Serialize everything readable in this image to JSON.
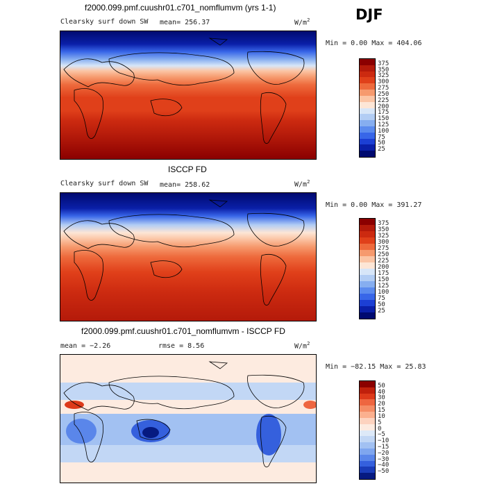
{
  "season": "DJF",
  "panels": [
    {
      "title": "f2000.099.pmf.cuushr01.c701_nomflumvm (yrs 1-1)",
      "variable": "Clearsky surf down SW",
      "mean_text": "mean= 256.37",
      "units_prefix": "W/m",
      "units_exp": "2",
      "minmax_text": "Min =    0.00 Max = 404.06",
      "levels": [
        "375",
        "350",
        "325",
        "300",
        "275",
        "250",
        "225",
        "200",
        "175",
        "150",
        "125",
        "100",
        "75",
        "50",
        "25"
      ]
    },
    {
      "title": "ISCCP FD",
      "variable": "Clearsky surf down SW",
      "mean_text": "mean= 258.62",
      "units_prefix": "W/m",
      "units_exp": "2",
      "minmax_text": "Min =    0.00 Max = 391.27",
      "levels": [
        "375",
        "350",
        "325",
        "300",
        "275",
        "250",
        "225",
        "200",
        "175",
        "150",
        "125",
        "100",
        "75",
        "50",
        "25"
      ]
    },
    {
      "title": "f2000.099.pmf.cuushr01.c701_nomflumvm - ISCCP FD",
      "mean_text": "mean =  −2.26",
      "rmse_text": "rmse =   8.56",
      "units_prefix": "W/m",
      "units_exp": "2",
      "minmax_text": "Min = −82.15 Max =  25.83",
      "levels": [
        "50",
        "40",
        "30",
        "20",
        "15",
        "10",
        "5",
        "0",
        "−5",
        "−10",
        "−15",
        "−20",
        "−30",
        "−40",
        "−50"
      ]
    }
  ],
  "colors": {
    "abs_scale": [
      "#8b0000",
      "#b41a0a",
      "#cc2a10",
      "#e0401a",
      "#ee6a3c",
      "#f69a6e",
      "#fbc5a5",
      "#fde6d6",
      "#d7e6f8",
      "#b2cdf4",
      "#86aef0",
      "#5b8bee",
      "#3866e8",
      "#1c3fd4",
      "#0a1fa8",
      "#000a70"
    ],
    "diff_scale": [
      "#8b0000",
      "#c0200c",
      "#dd3a1a",
      "#ee6640",
      "#f58d66",
      "#fbb08f",
      "#fdd3bf",
      "#fdebe0",
      "#dde9f8",
      "#c2d7f5",
      "#a2c1f2",
      "#7fa6ef",
      "#5a86ea",
      "#3560dd",
      "#1a3cb8",
      "#061a80"
    ]
  },
  "chart_data": [
    {
      "type": "heatmap",
      "title": "f2000.099.pmf.cuushr01.c701_nomflumvm (yrs 1-1)",
      "subtitle": "Clearsky surf down SW",
      "units": "W/m2",
      "mean": 256.37,
      "min": 0.0,
      "max": 404.06,
      "contour_levels": [
        25,
        50,
        75,
        100,
        125,
        150,
        175,
        200,
        225,
        250,
        275,
        300,
        325,
        350,
        375
      ],
      "zonal_profile": {
        "lat": [
          90,
          80,
          70,
          60,
          50,
          40,
          30,
          20,
          10,
          0,
          -10,
          -20,
          -30,
          -40,
          -50,
          -60,
          -70,
          -80,
          -90
        ],
        "value": [
          0,
          0,
          30,
          85,
          150,
          200,
          245,
          280,
          305,
          320,
          335,
          345,
          350,
          355,
          360,
          370,
          385,
          395,
          400
        ]
      }
    },
    {
      "type": "heatmap",
      "title": "ISCCP FD",
      "subtitle": "Clearsky surf down SW",
      "units": "W/m2",
      "mean": 258.62,
      "min": 0.0,
      "max": 391.27,
      "contour_levels": [
        25,
        50,
        75,
        100,
        125,
        150,
        175,
        200,
        225,
        250,
        275,
        300,
        325,
        350,
        375
      ],
      "zonal_profile": {
        "lat": [
          90,
          80,
          70,
          60,
          50,
          40,
          30,
          20,
          10,
          0,
          -10,
          -20,
          -30,
          -40,
          -50,
          -60,
          -70,
          -80,
          -90
        ],
        "value": [
          0,
          0,
          25,
          80,
          145,
          195,
          240,
          275,
          300,
          318,
          330,
          340,
          345,
          350,
          355,
          362,
          372,
          382,
          388
        ]
      }
    },
    {
      "type": "heatmap",
      "title": "f2000.099.pmf.cuushr01.c701_nomflumvm - ISCCP FD",
      "units": "W/m2",
      "mean": -2.26,
      "rmse": 8.56,
      "min": -82.15,
      "max": 25.83,
      "contour_levels": [
        -50,
        -40,
        -30,
        -20,
        -15,
        -10,
        -5,
        0,
        5,
        10,
        15,
        20,
        30,
        40,
        50
      ]
    }
  ]
}
